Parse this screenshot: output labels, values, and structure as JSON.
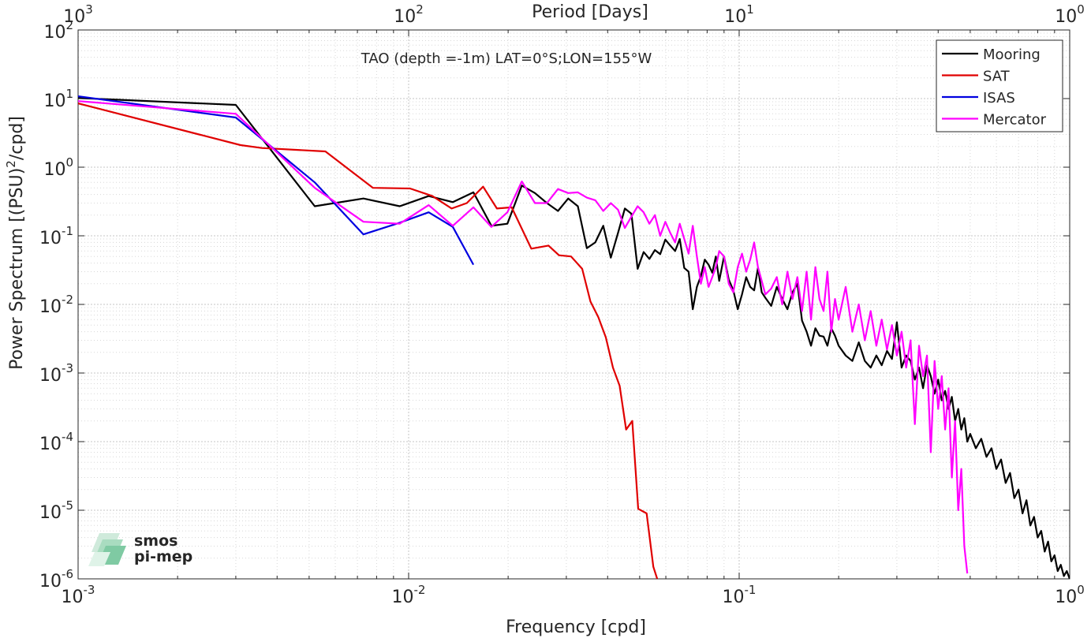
{
  "chart_data": {
    "type": "line",
    "title": "",
    "annotation": "TAO (depth =-1m) LAT=0°S;LON=155°W",
    "xlabel": "Frequency [cpd]",
    "ylabel": "Power Spectrum [(PSU)",
    "ylabel_sup": "2",
    "ylabel_tail": "/cpd]",
    "top_xlabel": "Period [Days]",
    "xscale": "log",
    "yscale": "log",
    "xlim": [
      0.001,
      1
    ],
    "ylim": [
      1e-06,
      100
    ],
    "top_xlim": [
      1000,
      1
    ],
    "grid": true,
    "minor_grid": true,
    "legend_position": "top-right",
    "x_ticks": [
      {
        "value": 0.001,
        "base": "10",
        "exp": "-3"
      },
      {
        "value": 0.01,
        "base": "10",
        "exp": "-2"
      },
      {
        "value": 0.1,
        "base": "10",
        "exp": "-1"
      },
      {
        "value": 1,
        "base": "10",
        "exp": "0"
      }
    ],
    "top_ticks": [
      {
        "value": 1000,
        "base": "10",
        "exp": "3"
      },
      {
        "value": 100,
        "base": "10",
        "exp": "2"
      },
      {
        "value": 10,
        "base": "10",
        "exp": "1"
      },
      {
        "value": 1,
        "base": "10",
        "exp": "0"
      }
    ],
    "y_ticks": [
      {
        "value": 100,
        "base": "10",
        "exp": "2"
      },
      {
        "value": 10,
        "base": "10",
        "exp": "1"
      },
      {
        "value": 1,
        "base": "10",
        "exp": "0"
      },
      {
        "value": 0.1,
        "base": "10",
        "exp": "-1"
      },
      {
        "value": 0.01,
        "base": "10",
        "exp": "-2"
      },
      {
        "value": 0.001,
        "base": "10",
        "exp": "-3"
      },
      {
        "value": 0.0001,
        "base": "10",
        "exp": "-4"
      },
      {
        "value": 1e-05,
        "base": "10",
        "exp": "-5"
      },
      {
        "value": 1e-06,
        "base": "10",
        "exp": "-6"
      }
    ],
    "series": [
      {
        "name": "Mooring",
        "color": "#000000",
        "points": [
          [
            0.001,
            10.2
          ],
          [
            0.003,
            8.1
          ],
          [
            0.0052,
            0.27
          ],
          [
            0.0073,
            0.35
          ],
          [
            0.0094,
            0.27
          ],
          [
            0.0115,
            0.38
          ],
          [
            0.0136,
            0.31
          ],
          [
            0.0157,
            0.43
          ],
          [
            0.0178,
            0.14
          ],
          [
            0.0199,
            0.15
          ],
          [
            0.022,
            0.54
          ],
          [
            0.0241,
            0.42
          ],
          [
            0.0262,
            0.3
          ],
          [
            0.0283,
            0.23
          ],
          [
            0.0304,
            0.35
          ],
          [
            0.0325,
            0.27
          ],
          [
            0.0346,
            0.066
          ],
          [
            0.0367,
            0.08
          ],
          [
            0.0388,
            0.14
          ],
          [
            0.0409,
            0.048
          ],
          [
            0.043,
            0.11
          ],
          [
            0.0451,
            0.25
          ],
          [
            0.0472,
            0.21
          ],
          [
            0.0493,
            0.033
          ],
          [
            0.0514,
            0.058
          ],
          [
            0.0535,
            0.046
          ],
          [
            0.0556,
            0.062
          ],
          [
            0.0577,
            0.054
          ],
          [
            0.0598,
            0.088
          ],
          [
            0.0619,
            0.072
          ],
          [
            0.064,
            0.06
          ],
          [
            0.0661,
            0.09
          ],
          [
            0.0682,
            0.034
          ],
          [
            0.0703,
            0.03
          ],
          [
            0.0724,
            0.0085
          ],
          [
            0.0745,
            0.018
          ],
          [
            0.0766,
            0.026
          ],
          [
            0.0787,
            0.045
          ],
          [
            0.0808,
            0.038
          ],
          [
            0.0829,
            0.029
          ],
          [
            0.085,
            0.05
          ],
          [
            0.087,
            0.022
          ],
          [
            0.09,
            0.05
          ],
          [
            0.093,
            0.023
          ],
          [
            0.096,
            0.016
          ],
          [
            0.099,
            0.0085
          ],
          [
            0.102,
            0.014
          ],
          [
            0.105,
            0.025
          ],
          [
            0.108,
            0.018
          ],
          [
            0.111,
            0.016
          ],
          [
            0.114,
            0.034
          ],
          [
            0.117,
            0.015
          ],
          [
            0.12,
            0.0125
          ],
          [
            0.125,
            0.0095
          ],
          [
            0.13,
            0.018
          ],
          [
            0.135,
            0.012
          ],
          [
            0.14,
            0.0085
          ],
          [
            0.145,
            0.015
          ],
          [
            0.15,
            0.02
          ],
          [
            0.155,
            0.0058
          ],
          [
            0.16,
            0.004
          ],
          [
            0.165,
            0.0025
          ],
          [
            0.17,
            0.0045
          ],
          [
            0.175,
            0.0035
          ],
          [
            0.18,
            0.0034
          ],
          [
            0.185,
            0.0025
          ],
          [
            0.19,
            0.0045
          ],
          [
            0.195,
            0.0035
          ],
          [
            0.2,
            0.0025
          ],
          [
            0.21,
            0.0018
          ],
          [
            0.22,
            0.0015
          ],
          [
            0.23,
            0.0028
          ],
          [
            0.24,
            0.0015
          ],
          [
            0.25,
            0.0012
          ],
          [
            0.26,
            0.0018
          ],
          [
            0.27,
            0.0013
          ],
          [
            0.28,
            0.0021
          ],
          [
            0.29,
            0.0016
          ],
          [
            0.3,
            0.0055
          ],
          [
            0.31,
            0.0012
          ],
          [
            0.32,
            0.0018
          ],
          [
            0.33,
            0.0015
          ],
          [
            0.34,
            0.0008
          ],
          [
            0.35,
            0.0012
          ],
          [
            0.36,
            0.0006
          ],
          [
            0.37,
            0.0013
          ],
          [
            0.38,
            0.0009
          ],
          [
            0.39,
            0.0005
          ],
          [
            0.4,
            0.0008
          ],
          [
            0.41,
            0.0004
          ],
          [
            0.42,
            0.00055
          ],
          [
            0.43,
            0.0003
          ],
          [
            0.44,
            0.00045
          ],
          [
            0.45,
            0.0002
          ],
          [
            0.46,
            0.0003
          ],
          [
            0.47,
            0.00015
          ],
          [
            0.48,
            0.00022
          ],
          [
            0.49,
            0.0001
          ],
          [
            0.5,
            0.00013
          ],
          [
            0.52,
            8e-05
          ],
          [
            0.54,
            0.00011
          ],
          [
            0.56,
            6e-05
          ],
          [
            0.58,
            8e-05
          ],
          [
            0.6,
            4e-05
          ],
          [
            0.62,
            5.5e-05
          ],
          [
            0.64,
            2.5e-05
          ],
          [
            0.66,
            3.5e-05
          ],
          [
            0.68,
            1.5e-05
          ],
          [
            0.7,
            2e-05
          ],
          [
            0.72,
            9e-06
          ],
          [
            0.74,
            1.4e-05
          ],
          [
            0.76,
            6e-06
          ],
          [
            0.78,
            8e-06
          ],
          [
            0.8,
            4e-06
          ],
          [
            0.82,
            5e-06
          ],
          [
            0.84,
            2.5e-06
          ],
          [
            0.86,
            3.5e-06
          ],
          [
            0.88,
            1.8e-06
          ],
          [
            0.9,
            2.2e-06
          ],
          [
            0.92,
            1.3e-06
          ],
          [
            0.94,
            1.6e-06
          ],
          [
            0.96,
            1.1e-06
          ],
          [
            0.98,
            1.3e-06
          ],
          [
            1.0,
            1e-06
          ]
        ]
      },
      {
        "name": "SAT",
        "color": "#e00000",
        "points": [
          [
            0.001,
            8.5
          ],
          [
            0.0031,
            2.1
          ],
          [
            0.0036,
            1.9
          ],
          [
            0.0056,
            1.7
          ],
          [
            0.0078,
            0.5
          ],
          [
            0.0101,
            0.49
          ],
          [
            0.0118,
            0.38
          ],
          [
            0.0135,
            0.25
          ],
          [
            0.015,
            0.3
          ],
          [
            0.0168,
            0.52
          ],
          [
            0.0185,
            0.25
          ],
          [
            0.0205,
            0.26
          ],
          [
            0.0235,
            0.065
          ],
          [
            0.0265,
            0.072
          ],
          [
            0.0285,
            0.052
          ],
          [
            0.031,
            0.05
          ],
          [
            0.0335,
            0.033
          ],
          [
            0.0355,
            0.011
          ],
          [
            0.0375,
            0.0065
          ],
          [
            0.0395,
            0.0033
          ],
          [
            0.0415,
            0.0012
          ],
          [
            0.0435,
            0.00065
          ],
          [
            0.0455,
            0.00015
          ],
          [
            0.0475,
            0.0002
          ],
          [
            0.0495,
            1.05e-05
          ],
          [
            0.0525,
            9e-06
          ],
          [
            0.055,
            1.5e-06
          ],
          [
            0.0565,
            1e-06
          ]
        ]
      },
      {
        "name": "ISAS",
        "color": "#0000e0",
        "points": [
          [
            0.001,
            10.8
          ],
          [
            0.003,
            5.3
          ],
          [
            0.0052,
            0.6
          ],
          [
            0.0073,
            0.105
          ],
          [
            0.0094,
            0.155
          ],
          [
            0.0115,
            0.22
          ],
          [
            0.0136,
            0.135
          ],
          [
            0.0157,
            0.038
          ]
        ]
      },
      {
        "name": "Mercator",
        "color": "#ff00ff",
        "points": [
          [
            0.001,
            9.2
          ],
          [
            0.003,
            6.0
          ],
          [
            0.0052,
            0.5
          ],
          [
            0.0073,
            0.16
          ],
          [
            0.0094,
            0.15
          ],
          [
            0.0115,
            0.28
          ],
          [
            0.0136,
            0.14
          ],
          [
            0.0157,
            0.26
          ],
          [
            0.0178,
            0.135
          ],
          [
            0.0199,
            0.22
          ],
          [
            0.022,
            0.62
          ],
          [
            0.0241,
            0.3
          ],
          [
            0.0262,
            0.3
          ],
          [
            0.0283,
            0.48
          ],
          [
            0.0304,
            0.42
          ],
          [
            0.0325,
            0.43
          ],
          [
            0.0346,
            0.36
          ],
          [
            0.0367,
            0.33
          ],
          [
            0.0388,
            0.23
          ],
          [
            0.0409,
            0.3
          ],
          [
            0.043,
            0.24
          ],
          [
            0.0451,
            0.13
          ],
          [
            0.0472,
            0.19
          ],
          [
            0.0493,
            0.27
          ],
          [
            0.0514,
            0.22
          ],
          [
            0.0535,
            0.15
          ],
          [
            0.0556,
            0.2
          ],
          [
            0.0577,
            0.1
          ],
          [
            0.0598,
            0.16
          ],
          [
            0.0619,
            0.11
          ],
          [
            0.064,
            0.08
          ],
          [
            0.0661,
            0.15
          ],
          [
            0.0682,
            0.09
          ],
          [
            0.0703,
            0.055
          ],
          [
            0.0724,
            0.14
          ],
          [
            0.0745,
            0.05
          ],
          [
            0.0766,
            0.02
          ],
          [
            0.0787,
            0.035
          ],
          [
            0.0808,
            0.018
          ],
          [
            0.0829,
            0.025
          ],
          [
            0.085,
            0.035
          ],
          [
            0.087,
            0.06
          ],
          [
            0.09,
            0.05
          ],
          [
            0.093,
            0.02
          ],
          [
            0.096,
            0.015
          ],
          [
            0.099,
            0.035
          ],
          [
            0.102,
            0.055
          ],
          [
            0.105,
            0.03
          ],
          [
            0.108,
            0.045
          ],
          [
            0.111,
            0.08
          ],
          [
            0.114,
            0.035
          ],
          [
            0.117,
            0.022
          ],
          [
            0.12,
            0.014
          ],
          [
            0.125,
            0.017
          ],
          [
            0.13,
            0.025
          ],
          [
            0.135,
            0.01
          ],
          [
            0.14,
            0.03
          ],
          [
            0.145,
            0.012
          ],
          [
            0.15,
            0.025
          ],
          [
            0.155,
            0.008
          ],
          [
            0.16,
            0.03
          ],
          [
            0.165,
            0.006
          ],
          [
            0.17,
            0.035
          ],
          [
            0.175,
            0.012
          ],
          [
            0.18,
            0.008
          ],
          [
            0.185,
            0.03
          ],
          [
            0.19,
            0.004
          ],
          [
            0.195,
            0.012
          ],
          [
            0.2,
            0.006
          ],
          [
            0.21,
            0.018
          ],
          [
            0.22,
            0.004
          ],
          [
            0.23,
            0.01
          ],
          [
            0.24,
            0.003
          ],
          [
            0.25,
            0.008
          ],
          [
            0.26,
            0.0025
          ],
          [
            0.27,
            0.006
          ],
          [
            0.28,
            0.0022
          ],
          [
            0.29,
            0.005
          ],
          [
            0.3,
            0.0018
          ],
          [
            0.31,
            0.004
          ],
          [
            0.32,
            0.0012
          ],
          [
            0.33,
            0.003
          ],
          [
            0.34,
            0.00018
          ],
          [
            0.35,
            0.0025
          ],
          [
            0.36,
            0.0009
          ],
          [
            0.37,
            0.0018
          ],
          [
            0.38,
            7e-05
          ],
          [
            0.39,
            0.0015
          ],
          [
            0.4,
            0.0003
          ],
          [
            0.41,
            0.0009
          ],
          [
            0.42,
            0.00015
          ],
          [
            0.43,
            0.0006
          ],
          [
            0.44,
            3e-05
          ],
          [
            0.45,
            0.0002
          ],
          [
            0.46,
            1e-05
          ],
          [
            0.47,
            4e-05
          ],
          [
            0.48,
            3e-06
          ],
          [
            0.49,
            1.2e-06
          ]
        ]
      }
    ]
  },
  "logo": {
    "line1": "smos",
    "line2": "pi-mep"
  }
}
